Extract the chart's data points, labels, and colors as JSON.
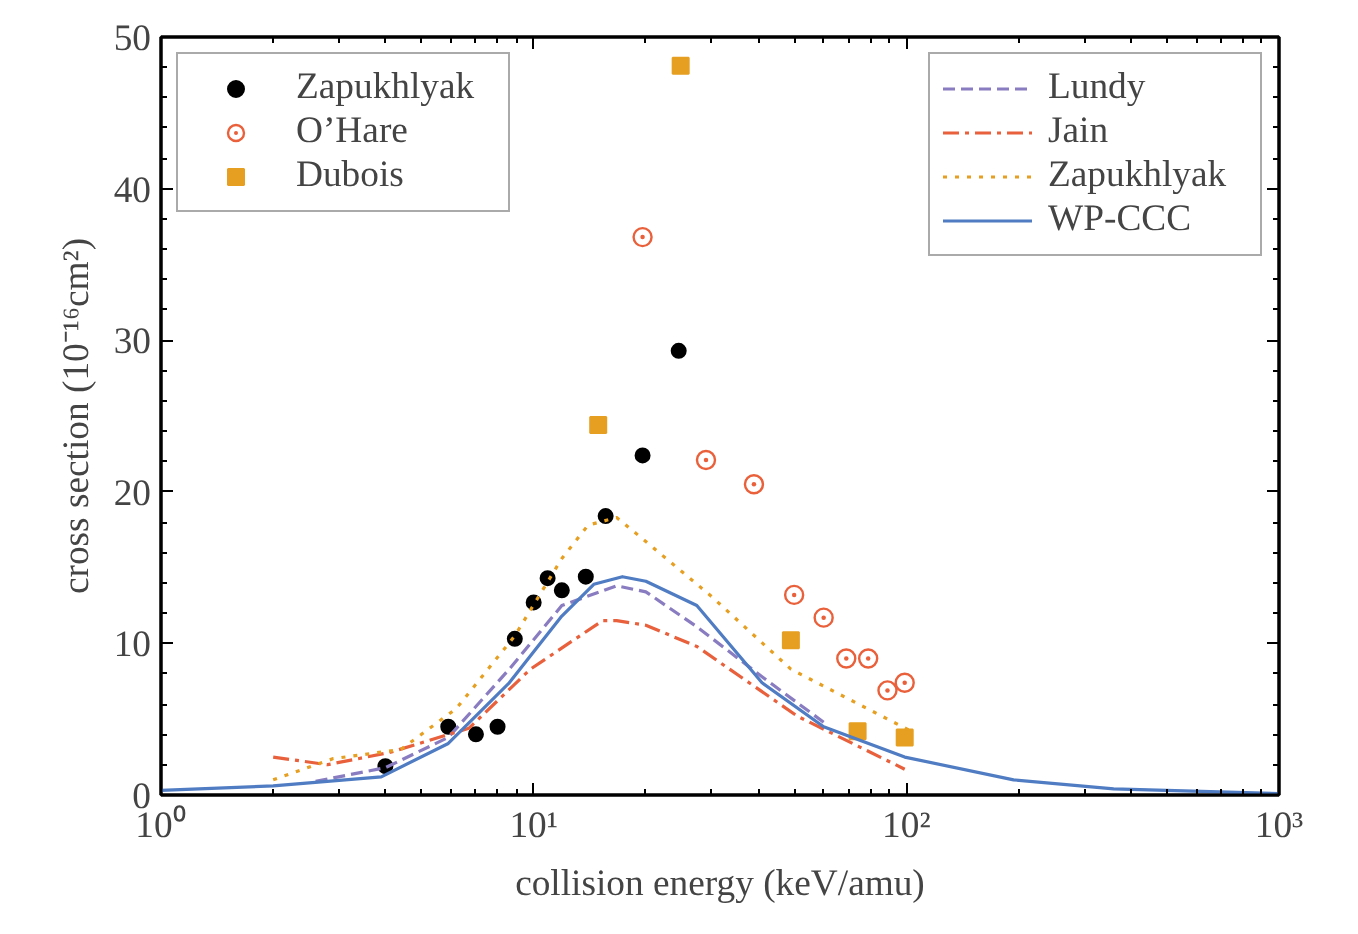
{
  "chart_data": {
    "type": "scatter",
    "xlabel": "collision energy (keV/amu)",
    "ylabel": "cross section (10⁻¹⁶cm²)",
    "log": "x",
    "xlim": [
      1,
      1000
    ],
    "ylim": [
      0,
      50
    ],
    "xticks": [
      {
        "value": 1,
        "label": "10⁰"
      },
      {
        "value": 10,
        "label": "10¹"
      },
      {
        "value": 100,
        "label": "10²"
      },
      {
        "value": 1000,
        "label": "10³"
      }
    ],
    "yticks": [
      0,
      10,
      20,
      30,
      40,
      50
    ],
    "grid": false,
    "legend": [
      "top left",
      "top right"
    ],
    "series": [
      {
        "name": "Zapukhlyak",
        "marker": "circle",
        "color": "#000000",
        "x": [
          4.0,
          5.9,
          7.0,
          8.0,
          8.9,
          10.0,
          10.9,
          11.9,
          13.8,
          15.6,
          19.6,
          24.5
        ],
        "values": [
          1.9,
          4.5,
          4.0,
          4.5,
          10.3,
          12.7,
          14.3,
          13.5,
          14.4,
          18.4,
          22.4,
          29.3
        ]
      },
      {
        "name": "O’Hare",
        "marker": "circle_dot",
        "color": "#e9603a",
        "x": [
          19.6,
          29,
          39,
          50,
          60,
          69,
          79,
          89,
          99
        ],
        "values": [
          36.8,
          22.1,
          20.5,
          13.2,
          11.7,
          9.0,
          9.0,
          6.9,
          7.4
        ]
      },
      {
        "name": "Dubois",
        "marker": "square",
        "color": "#e69f20",
        "x": [
          14.9,
          24.8,
          49,
          74,
          99
        ],
        "values": [
          24.4,
          48.1,
          10.2,
          4.2,
          3.8
        ]
      },
      {
        "name": "Lundy",
        "type": "line",
        "line_style": "dashed",
        "color": "#8a7cc0",
        "x": [
          2.6,
          4.0,
          5.9,
          8.6,
          11.9,
          16.7,
          20,
          27.4,
          41,
          60
        ],
        "values": [
          0.9,
          1.8,
          3.8,
          8.3,
          12.5,
          13.8,
          13.4,
          11.1,
          7.8,
          4.8
        ]
      },
      {
        "name": "Jain",
        "type": "line",
        "line_style": "dashdot",
        "color": "#e8603c",
        "x": [
          2.0,
          2.8,
          4.1,
          6.7,
          9.8,
          15.3,
          16.7,
          20,
          27.4,
          51,
          99
        ],
        "values": [
          2.5,
          2.0,
          2.8,
          4.4,
          8.3,
          11.5,
          11.5,
          11.2,
          9.8,
          5.2,
          1.7
        ]
      },
      {
        "name": "Zapukhlyak",
        "type": "line",
        "line_style": "dotted",
        "color": "#e69f20",
        "x": [
          2.0,
          2.9,
          4.4,
          6.2,
          8.9,
          11.9,
          14,
          16.7,
          19.6,
          30,
          49,
          105
        ],
        "values": [
          1.0,
          2.4,
          3.0,
          5.7,
          10.5,
          15.6,
          17.8,
          18.3,
          16.9,
          13.1,
          8.3,
          4.1
        ]
      },
      {
        "name": "WP-CCC",
        "type": "line",
        "line_style": "solid",
        "color": "#4f7cc2",
        "x": [
          1,
          2,
          3.9,
          5.9,
          8.6,
          11.9,
          14.5,
          17.3,
          20,
          27.4,
          41,
          60,
          99,
          194,
          360,
          1000
        ],
        "values": [
          0.3,
          0.6,
          1.2,
          3.4,
          7.4,
          11.8,
          13.9,
          14.4,
          14.1,
          12.5,
          7.4,
          4.5,
          2.5,
          1.0,
          0.4,
          0.1
        ]
      }
    ]
  }
}
